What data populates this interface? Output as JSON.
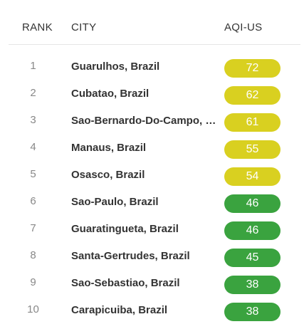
{
  "headers": {
    "rank": "RANK",
    "city": "CITY",
    "aqi": "AQI-US"
  },
  "colors": {
    "moderate": "#d9d020",
    "good": "#3aa33f"
  },
  "rows": [
    {
      "rank": "1",
      "city": "Guarulhos, Brazil",
      "aqi": "72",
      "level": "moderate"
    },
    {
      "rank": "2",
      "city": "Cubatao, Brazil",
      "aqi": "62",
      "level": "moderate"
    },
    {
      "rank": "3",
      "city": "Sao-Bernardo-Do-Campo, Brazil",
      "aqi": "61",
      "level": "moderate"
    },
    {
      "rank": "4",
      "city": "Manaus, Brazil",
      "aqi": "55",
      "level": "moderate"
    },
    {
      "rank": "5",
      "city": "Osasco, Brazil",
      "aqi": "54",
      "level": "moderate"
    },
    {
      "rank": "6",
      "city": "Sao-Paulo, Brazil",
      "aqi": "46",
      "level": "good"
    },
    {
      "rank": "7",
      "city": "Guaratingueta, Brazil",
      "aqi": "46",
      "level": "good"
    },
    {
      "rank": "8",
      "city": "Santa-Gertrudes, Brazil",
      "aqi": "45",
      "level": "good"
    },
    {
      "rank": "9",
      "city": "Sao-Sebastiao, Brazil",
      "aqi": "38",
      "level": "good"
    },
    {
      "rank": "10",
      "city": "Carapicuiba, Brazil",
      "aqi": "38",
      "level": "good"
    }
  ]
}
